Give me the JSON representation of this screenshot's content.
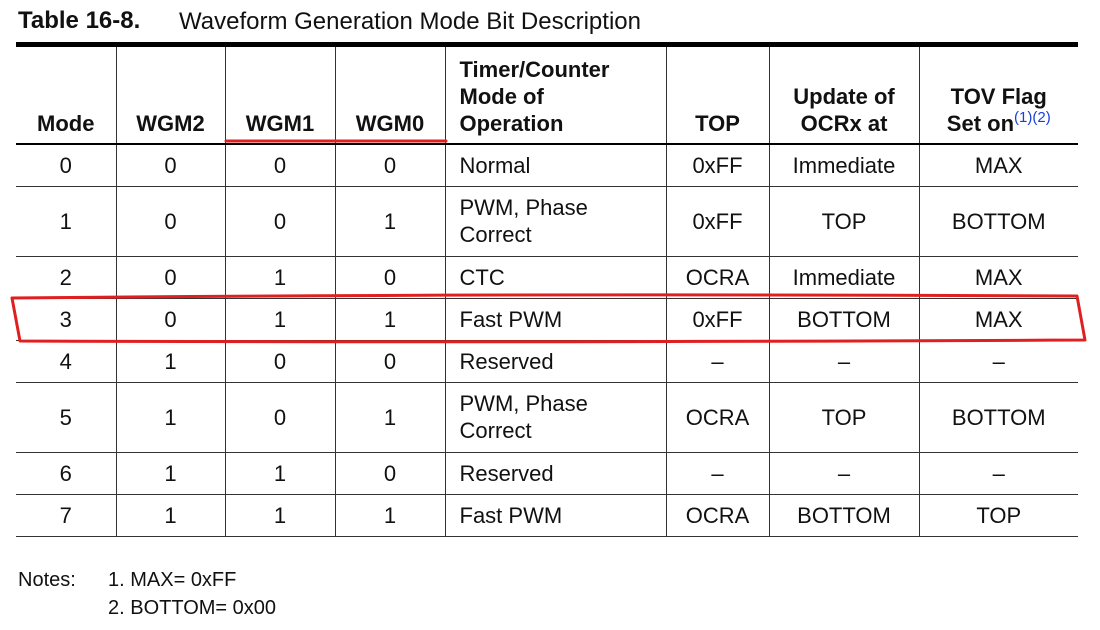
{
  "table_title": {
    "number": "Table 16-8.",
    "caption": "Waveform Generation Mode Bit Description"
  },
  "headers": {
    "mode": "Mode",
    "wgm2": "WGM2",
    "wgm1": "WGM1",
    "wgm0": "WGM0",
    "operation_l1": "Timer/Counter",
    "operation_l2": "Mode of",
    "operation_l3": "Operation",
    "top": "TOP",
    "update_l1": "Update of",
    "update_l2": "OCRx at",
    "tov_l1": "TOV Flag",
    "tov_l2": "Set on",
    "tov_ref": "(1)(2)"
  },
  "rows": [
    {
      "mode": "0",
      "wgm2": "0",
      "wgm1": "0",
      "wgm0": "0",
      "op_l1": "Normal",
      "op_l2": "",
      "top": "0xFF",
      "update": "Immediate",
      "tov": "MAX"
    },
    {
      "mode": "1",
      "wgm2": "0",
      "wgm1": "0",
      "wgm0": "1",
      "op_l1": "PWM, Phase",
      "op_l2": "Correct",
      "top": "0xFF",
      "update": "TOP",
      "tov": "BOTTOM"
    },
    {
      "mode": "2",
      "wgm2": "0",
      "wgm1": "1",
      "wgm0": "0",
      "op_l1": "CTC",
      "op_l2": "",
      "top": "OCRA",
      "update": "Immediate",
      "tov": "MAX"
    },
    {
      "mode": "3",
      "wgm2": "0",
      "wgm1": "1",
      "wgm0": "1",
      "op_l1": "Fast PWM",
      "op_l2": "",
      "top": "0xFF",
      "update": "BOTTOM",
      "tov": "MAX"
    },
    {
      "mode": "4",
      "wgm2": "1",
      "wgm1": "0",
      "wgm0": "0",
      "op_l1": "Reserved",
      "op_l2": "",
      "top": "–",
      "update": "–",
      "tov": "–"
    },
    {
      "mode": "5",
      "wgm2": "1",
      "wgm1": "0",
      "wgm0": "1",
      "op_l1": "PWM, Phase",
      "op_l2": "Correct",
      "top": "OCRA",
      "update": "TOP",
      "tov": "BOTTOM"
    },
    {
      "mode": "6",
      "wgm2": "1",
      "wgm1": "1",
      "wgm0": "0",
      "op_l1": "Reserved",
      "op_l2": "",
      "top": "–",
      "update": "–",
      "tov": "–"
    },
    {
      "mode": "7",
      "wgm2": "1",
      "wgm1": "1",
      "wgm0": "1",
      "op_l1": "Fast PWM",
      "op_l2": "",
      "top": "OCRA",
      "update": "BOTTOM",
      "tov": "TOP"
    }
  ],
  "notes": {
    "label": "Notes:",
    "items": [
      "1.  MAX= 0xFF",
      "2.  BOTTOM= 0x00"
    ]
  },
  "annotation": {
    "color": "#e02020",
    "underlined_headers": [
      "WGM1",
      "WGM0"
    ],
    "boxed_mode": "3"
  }
}
